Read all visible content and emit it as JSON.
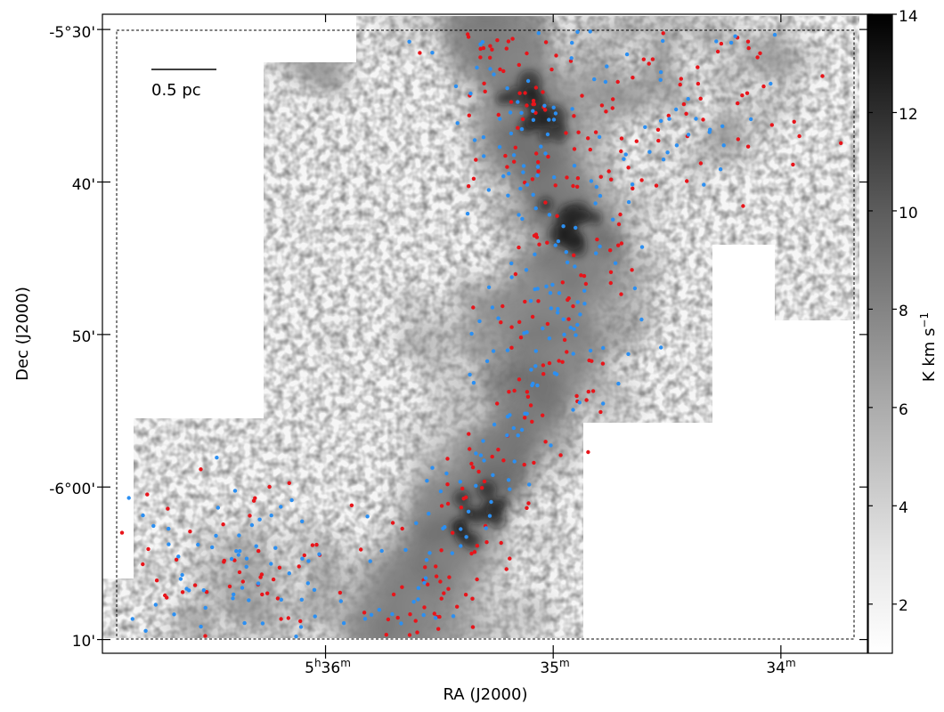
{
  "chart_data": {
    "type": "scatter",
    "subtype": "astronomical map with point overlay (grayscale integrated intensity image)",
    "xlabel": "RA (J2000)",
    "ylabel": "Dec (J2000)",
    "colorbar_label": "K km s$^{-1}$",
    "colorbar_label_parts": {
      "main": "K km s",
      "sup": "−1"
    },
    "colorbar_ticks": [
      "2",
      "4",
      "6",
      "8",
      "10",
      "12",
      "14"
    ],
    "colorbar_range": [
      1,
      14
    ],
    "colormap": "gray_r",
    "x_ticks": [
      {
        "label": "5h36m",
        "parts": [
          "5",
          "h",
          "36",
          "m"
        ],
        "value_min": 36
      },
      {
        "label": "35m",
        "parts": [
          "",
          "",
          "35",
          "m"
        ],
        "value_min": 35
      },
      {
        "label": "34m",
        "parts": [
          "",
          "",
          "34",
          "m"
        ],
        "value_min": 34
      }
    ],
    "y_ticks": [
      {
        "label": "-5°30'",
        "value_arcmin": -330
      },
      {
        "label": "40'",
        "value_arcmin": -340
      },
      {
        "label": "50'",
        "value_arcmin": -350
      },
      {
        "label": "-6°00'",
        "value_arcmin": -360
      },
      {
        "label": "10'",
        "value_arcmin": -370
      }
    ],
    "xlim_ra_min": [
      36.98,
      33.62
    ],
    "ylim_dec_arcmin": [
      -370.9,
      -329.0
    ],
    "scale_bar_label": "0.5 pc",
    "grid": false,
    "dashed_box": true,
    "series": [
      {
        "color": "#e8141a",
        "count_approx": 300
      },
      {
        "color": "#2b8ff2",
        "count_approx": 280
      }
    ],
    "filament_ridge": [
      [
        35.28,
        -330.0
      ],
      [
        35.12,
        -334.5
      ],
      [
        35.05,
        -338.5
      ],
      [
        34.96,
        -342.0
      ],
      [
        34.88,
        -344.5
      ],
      [
        34.98,
        -347.0
      ],
      [
        35.02,
        -352.0
      ],
      [
        35.15,
        -356.0
      ],
      [
        35.35,
        -360.0
      ],
      [
        35.45,
        -363.0
      ],
      [
        35.55,
        -366.5
      ],
      [
        35.7,
        -370.9
      ]
    ]
  },
  "colors": {
    "red_points": "#e8141a",
    "blue_points": "#2b8ff2",
    "image": "gray_r"
  }
}
